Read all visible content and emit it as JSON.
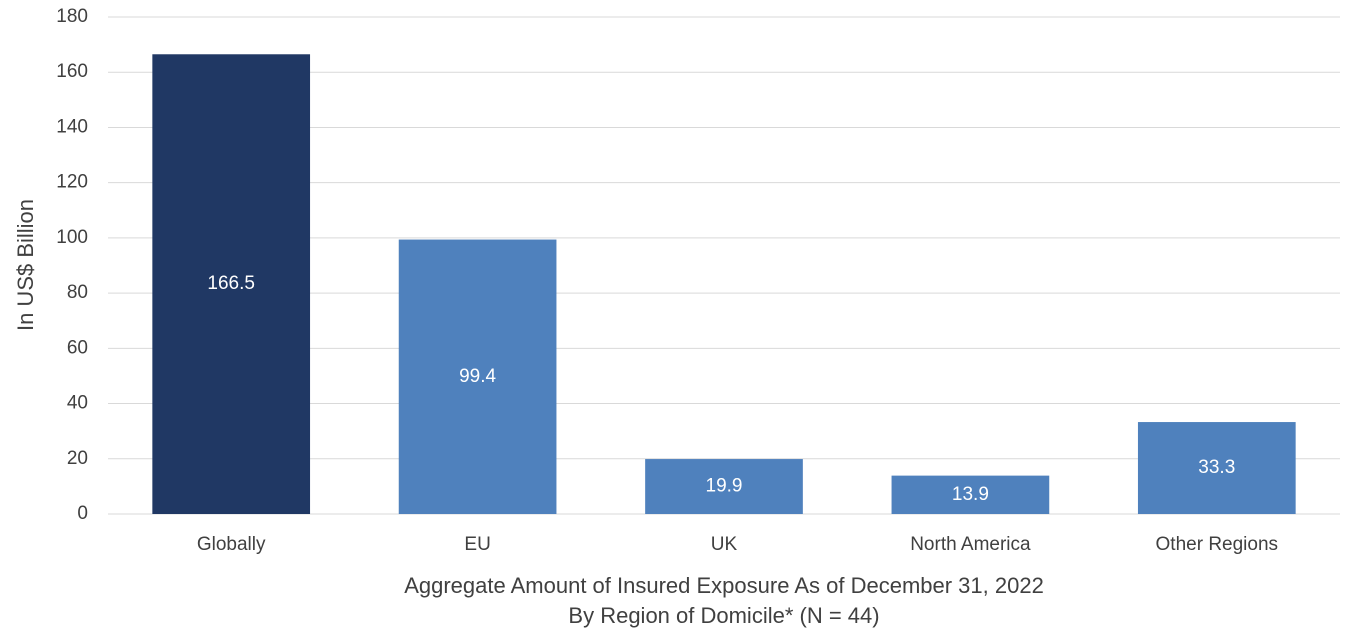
{
  "chart_data": {
    "type": "bar",
    "ylabel": "In US$ Billion",
    "xlabel": [
      "Aggregate Amount of Insured Exposure As of December 31, 2022",
      "By Region of Domicile* (N = 44)"
    ],
    "categories": [
      "Globally",
      "EU",
      "UK",
      "North America",
      "Other Regions"
    ],
    "values": [
      166.5,
      99.4,
      19.9,
      13.9,
      33.3
    ],
    "colors": [
      "#203864",
      "#4f81bd",
      "#4f81bd",
      "#4f81bd",
      "#4f81bd"
    ],
    "ylim": [
      0,
      180
    ],
    "yticks": [
      0,
      20,
      40,
      60,
      80,
      100,
      120,
      140,
      160,
      180
    ],
    "grid": true
  }
}
